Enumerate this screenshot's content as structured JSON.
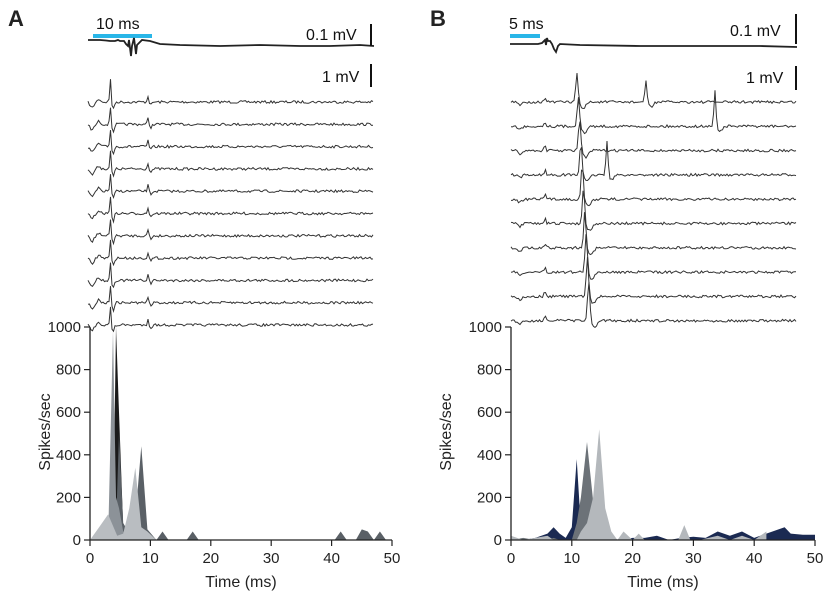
{
  "panels": [
    {
      "letter": "A",
      "time_scale_label": "10 ms",
      "avg_scale_label": "0.1 mV",
      "trace_scale_label": "1 mV",
      "trace_count": 11,
      "scale_bar_color": "#29b6e8"
    },
    {
      "letter": "B",
      "time_scale_label": "5 ms",
      "avg_scale_label": "0.1 mV",
      "trace_scale_label": "1 mV",
      "trace_count": 10,
      "scale_bar_color": "#29b6e8"
    }
  ],
  "chart_data": [
    {
      "type": "area",
      "panel": "A",
      "xlabel": "Time (ms)",
      "ylabel": "Spikes/sec",
      "xlim": [
        0,
        50
      ],
      "ylim": [
        0,
        1000
      ],
      "x_ticks": [
        0,
        10,
        20,
        30,
        40,
        50
      ],
      "y_ticks": [
        0,
        200,
        400,
        600,
        800,
        1000
      ],
      "series": [
        {
          "color": "#1a1a1a",
          "x": [
            3,
            3.8,
            4.3,
            4.8,
            5.5,
            6.5,
            7.5,
            8.5,
            9.5,
            11,
            12,
            13,
            16,
            17,
            18,
            40.5,
            41.5,
            42.5,
            44,
            45,
            46,
            47,
            48,
            49
          ],
          "values": [
            0,
            20,
            1000,
            600,
            60,
            0,
            0,
            0,
            0,
            0,
            0,
            0,
            0,
            0,
            0,
            0,
            0,
            0,
            0,
            0,
            0,
            0,
            0,
            0
          ]
        },
        {
          "color": "#5a6066",
          "x": [
            3,
            3.8,
            4.3,
            4.8,
            5.5,
            6.5,
            7.5,
            8.5,
            9.5,
            11,
            12,
            13,
            16,
            17,
            18,
            40.5,
            41.5,
            42.5,
            44,
            45,
            46,
            47,
            48,
            49
          ],
          "values": [
            0,
            50,
            60,
            500,
            80,
            30,
            100,
            440,
            50,
            0,
            40,
            0,
            0,
            40,
            0,
            0,
            40,
            0,
            0,
            50,
            40,
            0,
            40,
            0
          ]
        },
        {
          "color": "#8c9298",
          "x": [
            3,
            3.8,
            4.3,
            4.8,
            5.5,
            6.5,
            7.5,
            8.5,
            9.5,
            11,
            12,
            13,
            16,
            17,
            18,
            40.5,
            41.5,
            42.5,
            44,
            45,
            46,
            47,
            48,
            49
          ],
          "values": [
            0,
            980,
            200,
            150,
            40,
            0,
            0,
            0,
            0,
            0,
            0,
            0,
            0,
            0,
            0,
            0,
            0,
            0,
            0,
            0,
            0,
            0,
            0,
            0
          ]
        },
        {
          "color": "#b9bdc1",
          "x": [
            0,
            1.5,
            3,
            4.5,
            5.5,
            6.5,
            7.5,
            8.5,
            9.5,
            11,
            12,
            13,
            16,
            17,
            18,
            40.5,
            41.5,
            42.5,
            44,
            45,
            46,
            47,
            48,
            49
          ],
          "values": [
            0,
            60,
            120,
            20,
            30,
            150,
            340,
            60,
            40,
            0,
            0,
            0,
            0,
            0,
            0,
            0,
            0,
            0,
            0,
            0,
            0,
            0,
            0,
            0
          ]
        }
      ]
    },
    {
      "type": "area",
      "panel": "B",
      "xlabel": "Time (ms)",
      "ylabel": "Spikes/sec",
      "xlim": [
        0,
        50
      ],
      "ylim": [
        0,
        1000
      ],
      "x_ticks": [
        0,
        10,
        20,
        30,
        40,
        50
      ],
      "y_ticks": [
        0,
        200,
        400,
        600,
        800,
        1000
      ],
      "series": [
        {
          "color": "#1b2a52",
          "x": [
            0,
            2,
            4,
            6,
            7,
            8,
            9,
            10,
            10.8,
            11.5,
            12.5,
            14,
            16,
            18,
            20,
            22,
            24,
            26,
            28,
            30,
            32,
            34,
            36,
            38,
            40,
            42,
            44,
            45,
            46,
            48,
            50
          ],
          "values": [
            15,
            0,
            10,
            30,
            60,
            30,
            10,
            60,
            380,
            60,
            20,
            10,
            10,
            0,
            10,
            10,
            20,
            0,
            10,
            15,
            10,
            40,
            20,
            40,
            10,
            30,
            50,
            60,
            30,
            25,
            25
          ]
        },
        {
          "color": "#6c7278",
          "x": [
            0,
            2,
            4,
            6,
            7,
            8,
            9,
            10,
            10.8,
            11.5,
            12.5,
            14,
            16,
            18,
            20,
            22,
            24,
            26,
            28,
            30,
            32,
            34,
            36,
            38,
            40,
            42,
            44,
            45,
            46,
            48,
            50
          ],
          "values": [
            0,
            10,
            0,
            0,
            10,
            0,
            0,
            0,
            80,
            200,
            460,
            50,
            0,
            0,
            0,
            0,
            0,
            0,
            0,
            0,
            0,
            0,
            0,
            0,
            0,
            0,
            0,
            0,
            0,
            0,
            0
          ]
        },
        {
          "color": "#b4b8bc",
          "x": [
            0,
            2,
            4,
            6,
            7,
            8,
            9,
            10,
            10.8,
            11.5,
            12.5,
            13.5,
            14.5,
            15.5,
            16.5,
            17.5,
            18.5,
            20,
            21,
            22,
            24,
            26,
            27.5,
            28.5,
            29.5,
            31,
            34,
            36,
            38,
            40,
            42
          ],
          "values": [
            20,
            0,
            10,
            20,
            0,
            0,
            0,
            0,
            0,
            40,
            80,
            200,
            520,
            150,
            40,
            0,
            40,
            0,
            30,
            0,
            0,
            0,
            0,
            70,
            0,
            0,
            20,
            0,
            20,
            0,
            40
          ]
        }
      ]
    }
  ]
}
